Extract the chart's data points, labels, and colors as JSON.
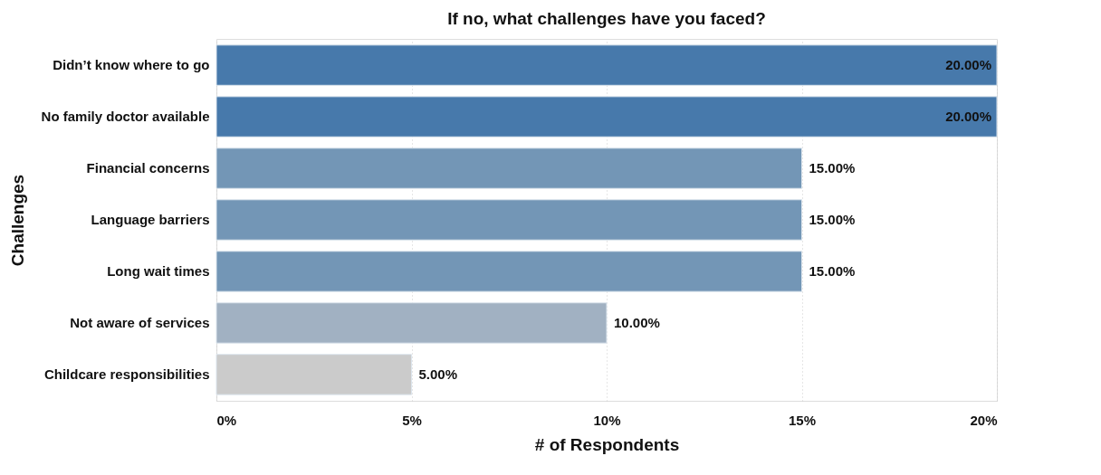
{
  "chart_data": {
    "type": "bar",
    "orientation": "horizontal",
    "title": "If no, what challenges have you faced?",
    "xlabel": "# of Respondents",
    "ylabel": "Challenges",
    "categories": [
      "Didn’t know where to go",
      "No family doctor available",
      "Financial concerns",
      "Language barriers",
      "Long wait times",
      "Not aware of services",
      "Childcare responsibilities"
    ],
    "values": [
      20,
      20,
      15,
      15,
      15,
      10,
      5
    ],
    "colors": [
      "#4779ab",
      "#4779ab",
      "#7396b6",
      "#7396b6",
      "#7396b6",
      "#a1b1c2",
      "#cbcbcb"
    ],
    "value_labels": [
      "20.00%",
      "20.00%",
      "15.00%",
      "15.00%",
      "15.00%",
      "10.00%",
      "5.00%"
    ],
    "xlim": [
      0,
      20
    ],
    "xticks": [
      {
        "value": 0,
        "label": "0%"
      },
      {
        "value": 5,
        "label": "5%"
      },
      {
        "value": 10,
        "label": "10%"
      },
      {
        "value": 15,
        "label": "15%"
      },
      {
        "value": 20,
        "label": "20%"
      }
    ],
    "grid": "x"
  }
}
